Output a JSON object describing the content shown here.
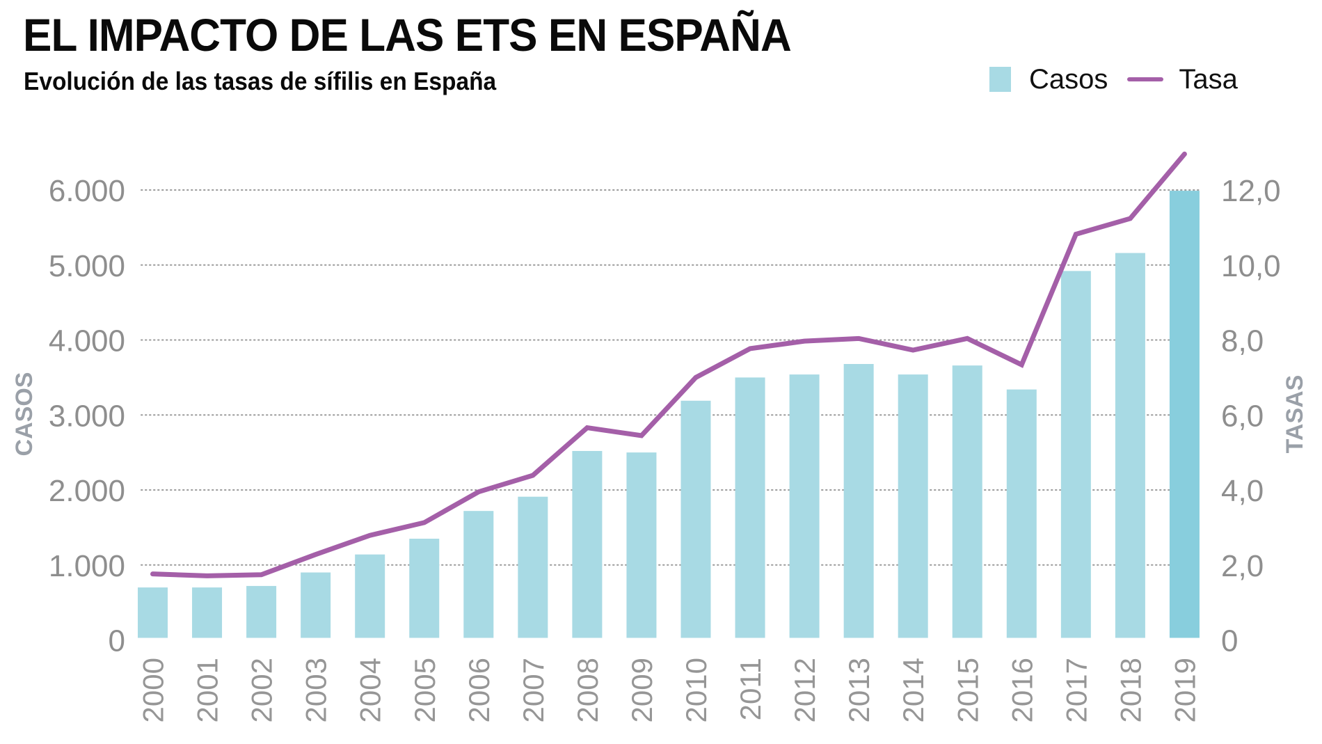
{
  "header": {
    "title": "EL IMPACTO DE LAS ETS EN ESPAÑA",
    "subtitle": "Evolución de las tasas de sífilis en España"
  },
  "legend": {
    "casos_label": "Casos",
    "tasa_label": "Tasa"
  },
  "colors": {
    "bar": "#A8DAE4",
    "bar_highlight": "#88CEDD",
    "line": "#A45FA8",
    "grid": "#9a9a9a",
    "tick_text": "#8e8e8e",
    "axis_title": "#9aa0a8"
  },
  "chart_data": {
    "type": "bar",
    "title": "EL IMPACTO DE LAS ETS EN ESPAÑA",
    "subtitle": "Evolución de las tasas de sífilis en España",
    "xlabel": "",
    "ylabel": "CASOS",
    "y2label": "TASAS",
    "categories": [
      "2000",
      "2001",
      "2002",
      "2003",
      "2004",
      "2005",
      "2006",
      "2007",
      "2008",
      "2009",
      "2010",
      "2011",
      "2012",
      "2013",
      "2014",
      "2015",
      "2016",
      "2017",
      "2018",
      "2019"
    ],
    "series": [
      {
        "name": "Casos",
        "type": "bar",
        "axis": "left",
        "values": [
          700,
          700,
          720,
          900,
          1140,
          1350,
          1720,
          1910,
          2520,
          2500,
          3190,
          3500,
          3540,
          3680,
          3540,
          3660,
          3340,
          4920,
          5160,
          5990
        ]
      },
      {
        "name": "Tasa",
        "type": "line",
        "axis": "right",
        "values": [
          1.76,
          1.71,
          1.74,
          2.28,
          2.79,
          3.13,
          3.95,
          4.39,
          5.66,
          5.45,
          7.0,
          7.77,
          7.97,
          8.04,
          7.73,
          8.04,
          7.34,
          10.82,
          11.24,
          12.96
        ]
      }
    ],
    "highlight_index": 19,
    "ylim": [
      0,
      6000
    ],
    "y2lim": [
      0,
      12
    ],
    "yticks": [
      0,
      1000,
      2000,
      3000,
      4000,
      5000,
      6000
    ],
    "ytick_labels": [
      "0",
      "1.000",
      "2.000",
      "3.000",
      "4.000",
      "5.000",
      "6.000"
    ],
    "y2ticks": [
      0,
      2,
      4,
      6,
      8,
      10,
      12
    ],
    "y2tick_labels": [
      "0",
      "2,0",
      "4,0",
      "6,0",
      "8,0",
      "10,0",
      "12,0"
    ],
    "grid": true,
    "grid_style": "dotted",
    "legend_position": "top-right"
  }
}
